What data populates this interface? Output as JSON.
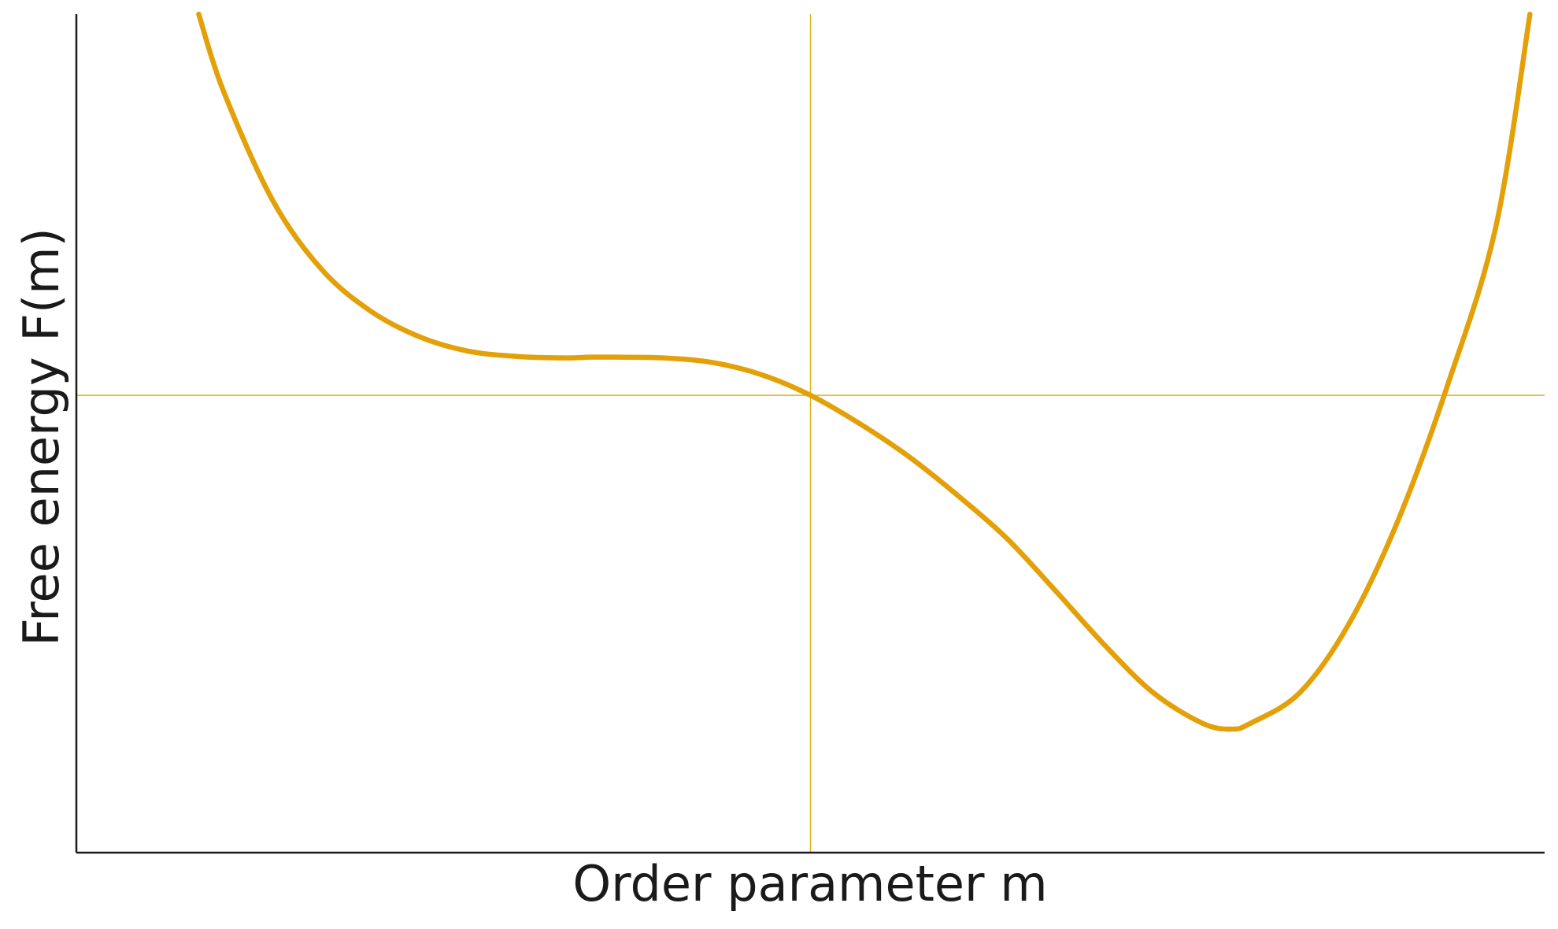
{
  "chart_data": {
    "type": "line",
    "title": "",
    "xlabel": "Order parameter m",
    "ylabel": "Free energy F(m)",
    "xlim": [
      -1.5,
      1.5
    ],
    "ylim": [
      -0.6,
      0.5
    ],
    "grid": false,
    "x_ticks": [],
    "y_ticks": [],
    "reference_lines": {
      "vertical_x": 0.0,
      "horizontal_y": 0.0
    },
    "colors": {
      "curve": "#e3a008",
      "reference": "#e3b21c",
      "axes": "#1a1a1a",
      "text": "#1a1a1a"
    },
    "series": [
      {
        "x": [
          -1.25,
          -1.2,
          -1.1,
          -1.0,
          -0.9,
          -0.8,
          -0.7,
          -0.6,
          -0.5,
          -0.45,
          -0.4,
          -0.3,
          -0.2,
          -0.1,
          0.0,
          0.1,
          0.2,
          0.3,
          0.4,
          0.5,
          0.6,
          0.7,
          0.8,
          0.86,
          0.9,
          1.0,
          1.1,
          1.2,
          1.3,
          1.4,
          1.47
        ],
        "y": [
          0.5,
          0.4,
          0.257,
          0.166,
          0.111,
          0.077,
          0.058,
          0.051,
          0.049,
          0.05,
          0.05,
          0.049,
          0.043,
          0.027,
          0.0,
          -0.037,
          -0.08,
          -0.131,
          -0.187,
          -0.256,
          -0.327,
          -0.39,
          -0.43,
          -0.438,
          -0.43,
          -0.39,
          -0.3,
          -0.165,
          0.01,
          0.22,
          0.5
        ]
      }
    ]
  }
}
